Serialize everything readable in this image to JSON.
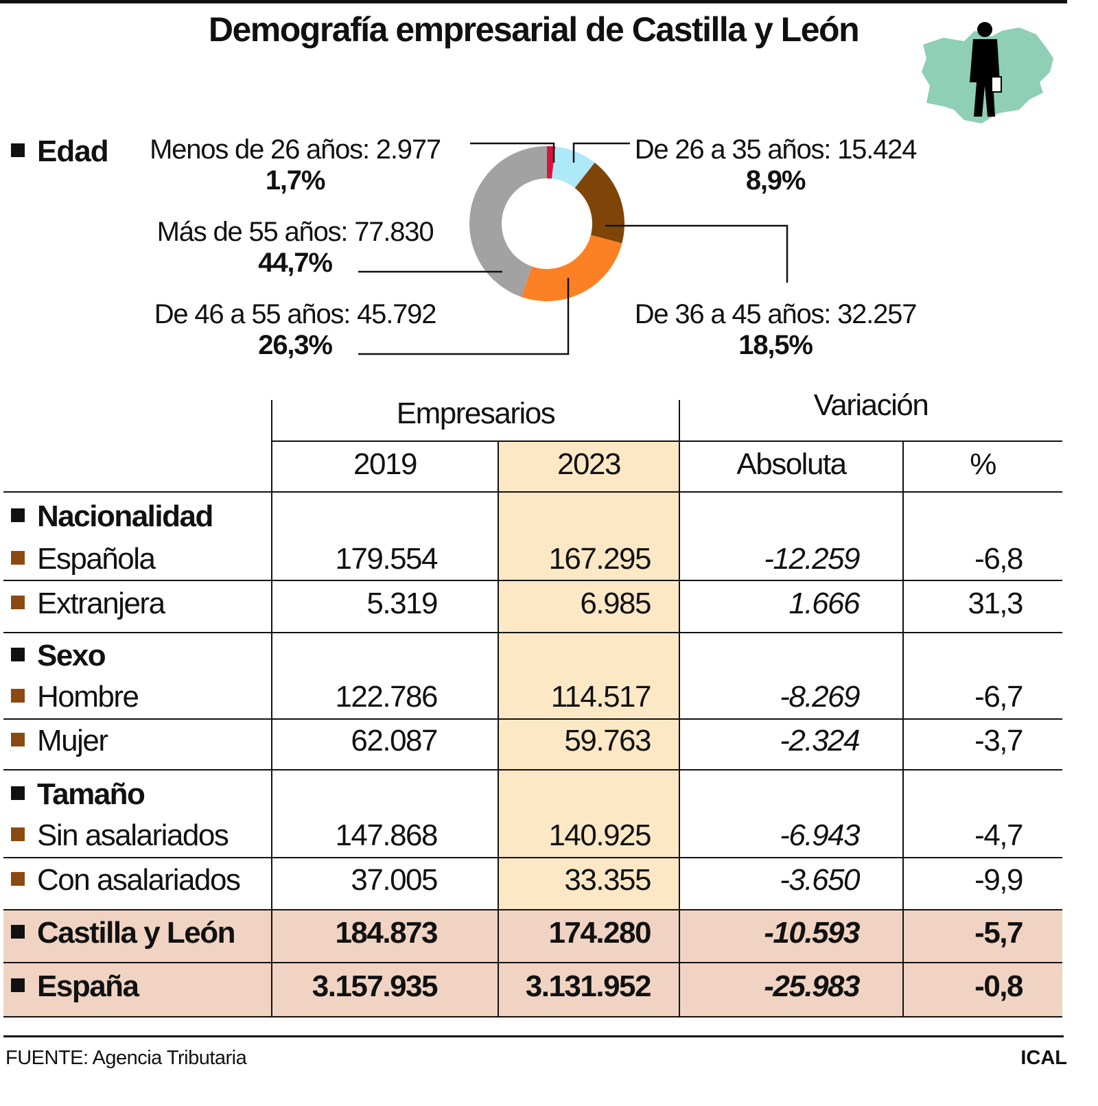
{
  "title": "Demografía empresarial de Castilla y León",
  "colors": {
    "highlight_2023": "#fde8c6",
    "total_rows": "#f0d3c2",
    "item_bullet": "#8b4a12",
    "map": "#8ecfb6"
  },
  "chart_data": {
    "type": "pie",
    "donut": true,
    "section_label": "Edad",
    "start": "top",
    "direction": "clockwise",
    "slices": [
      {
        "label": "Menos de 26 años: 2.977",
        "pct": "1,7%",
        "value": 2977,
        "color": "#d6163d"
      },
      {
        "label": "De 26 a 35 años: 15.424",
        "pct": "8,9%",
        "value": 15424,
        "color": "#aee9f7"
      },
      {
        "label": "De 36 a 45 años: 32.257",
        "pct": "18,5%",
        "value": 32257,
        "color": "#7f4508"
      },
      {
        "label": "De 46 a 55 años: 45.792",
        "pct": "26,3%",
        "value": 45792,
        "color": "#fd8024"
      },
      {
        "label": "Más de 55 años: 77.830",
        "pct": "44,7%",
        "value": 77830,
        "color": "#a2a2a2"
      }
    ]
  },
  "table": {
    "group_headers": [
      "Empresarios",
      "Variación"
    ],
    "columns": [
      "2019",
      "2023",
      "Absoluta",
      "%"
    ],
    "rows": [
      {
        "type": "section",
        "label": "Nacionalidad"
      },
      {
        "type": "item",
        "label": "Española",
        "values": [
          "179.554",
          "167.295",
          "-12.259",
          "-6,8"
        ]
      },
      {
        "type": "item",
        "label": "Extranjera",
        "values": [
          "5.319",
          "6.985",
          "1.666",
          "31,3"
        ]
      },
      {
        "type": "section",
        "label": "Sexo"
      },
      {
        "type": "item",
        "label": "Hombre",
        "values": [
          "122.786",
          "114.517",
          "-8.269",
          "-6,7"
        ]
      },
      {
        "type": "item",
        "label": "Mujer",
        "values": [
          "62.087",
          "59.763",
          "-2.324",
          "-3,7"
        ]
      },
      {
        "type": "section",
        "label": "Tamaño"
      },
      {
        "type": "item",
        "label": "Sin asalariados",
        "values": [
          "147.868",
          "140.925",
          "-6.943",
          "-4,7"
        ]
      },
      {
        "type": "item",
        "label": "Con asalariados",
        "values": [
          "37.005",
          "33.355",
          "-3.650",
          "-9,9"
        ]
      },
      {
        "type": "total",
        "label": "Castilla y León",
        "values": [
          "184.873",
          "174.280",
          "-10.593",
          "-5,7"
        ]
      },
      {
        "type": "total",
        "label": "España",
        "values": [
          "3.157.935",
          "3.131.952",
          "-25.983",
          "-0,8"
        ]
      }
    ]
  },
  "footer": {
    "source": "FUENTE: Agencia Tributaria",
    "brand": "ICAL"
  }
}
